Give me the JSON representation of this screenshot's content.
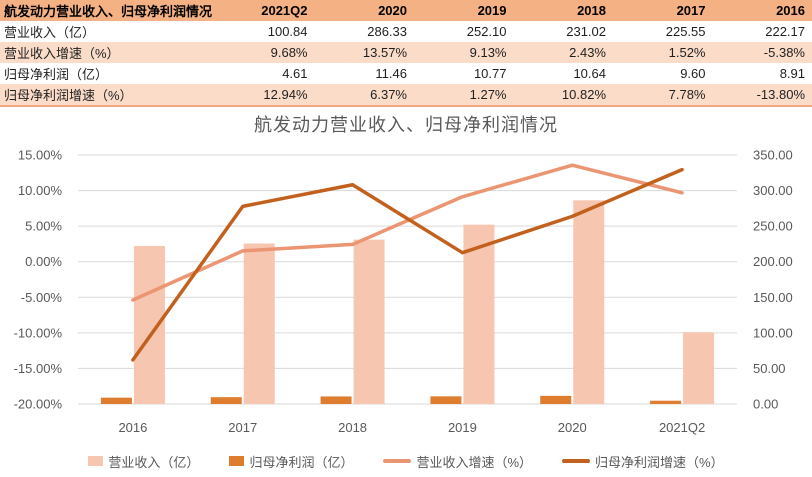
{
  "table": {
    "header": [
      "航发动力营业收入、归母净利润情况",
      "2021Q2",
      "2020",
      "2019",
      "2018",
      "2017",
      "2016"
    ],
    "rows": [
      {
        "label": "营业收入（亿）",
        "values": [
          "100.84",
          "286.33",
          "252.10",
          "231.02",
          "225.55",
          "222.17"
        ]
      },
      {
        "label": "营业收入增速（%）",
        "values": [
          "9.68%",
          "13.57%",
          "9.13%",
          "2.43%",
          "1.52%",
          "-5.38%"
        ]
      },
      {
        "label": "归母净利润（亿）",
        "values": [
          "4.61",
          "11.46",
          "10.77",
          "10.64",
          "9.60",
          "8.91"
        ]
      },
      {
        "label": "归母净利润增速（%）",
        "values": [
          "12.94%",
          "6.37%",
          "1.27%",
          "10.82%",
          "7.78%",
          "-13.80%"
        ]
      }
    ]
  },
  "chart_data": {
    "type": "bar+line combo",
    "title": "航发动力营业收入、归母净利润情况",
    "categories": [
      "2016",
      "2017",
      "2018",
      "2019",
      "2020",
      "2021Q2"
    ],
    "series": [
      {
        "name": "营业收入（亿）",
        "type": "bar",
        "axis": "right",
        "color": "#F6C6B1",
        "values": [
          222.17,
          225.55,
          231.02,
          252.1,
          286.33,
          100.84
        ]
      },
      {
        "name": "归母净利润（亿）",
        "type": "bar",
        "axis": "right",
        "color": "#DE7D2E",
        "values": [
          8.91,
          9.6,
          10.64,
          10.77,
          11.46,
          4.61
        ]
      },
      {
        "name": "营业收入增速（%）",
        "type": "line",
        "axis": "left",
        "color": "#EC9572",
        "values": [
          -5.38,
          1.52,
          2.43,
          9.13,
          13.57,
          9.68
        ]
      },
      {
        "name": "归母净利润增速（%）",
        "type": "line",
        "axis": "left",
        "color": "#C2611E",
        "values": [
          -13.8,
          7.78,
          10.82,
          1.27,
          6.37,
          12.94
        ]
      }
    ],
    "left_axis": {
      "min": -20,
      "max": 15,
      "ticks": [
        "15.00%",
        "10.00%",
        "5.00%",
        "0.00%",
        "-5.00%",
        "-10.00%",
        "-15.00%",
        "-20.00%"
      ]
    },
    "right_axis": {
      "min": 0,
      "max": 350,
      "ticks": [
        "350.00",
        "300.00",
        "250.00",
        "200.00",
        "150.00",
        "100.00",
        "50.00",
        "0.00"
      ]
    },
    "grid": true,
    "legend_position": "bottom"
  },
  "colors": {
    "table_header_bg": "#F4B183",
    "table_row_alt_bg": "#FADCC9",
    "table_border_accent": "#F2A87C",
    "text_dark": "#1F1F1F",
    "axis_text": "#595959",
    "gridline": "#D9D9D9"
  }
}
